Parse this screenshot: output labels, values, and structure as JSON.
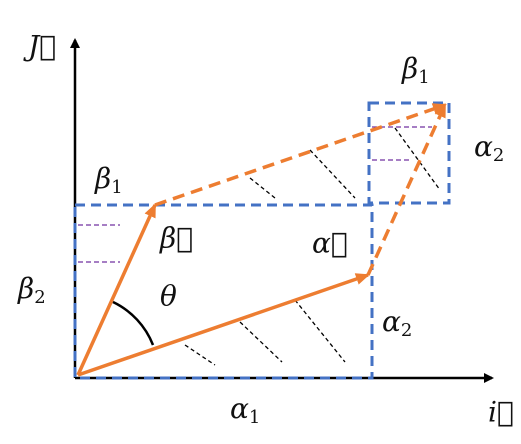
{
  "labels": {
    "j_axis": "J⃗",
    "i_axis": "i⃗",
    "beta_vec": "β⃗",
    "alpha_vec": "α⃗",
    "theta": "θ",
    "beta1_top": {
      "base": "β",
      "sub": "1"
    },
    "alpha2_right": {
      "base": "α",
      "sub": "2"
    },
    "beta1_left": {
      "base": "β",
      "sub": "1"
    },
    "beta2_left": {
      "base": "β",
      "sub": "2"
    },
    "alpha2_mid": {
      "base": "α",
      "sub": "2"
    },
    "alpha1_bottom": {
      "base": "α",
      "sub": "1"
    }
  }
}
